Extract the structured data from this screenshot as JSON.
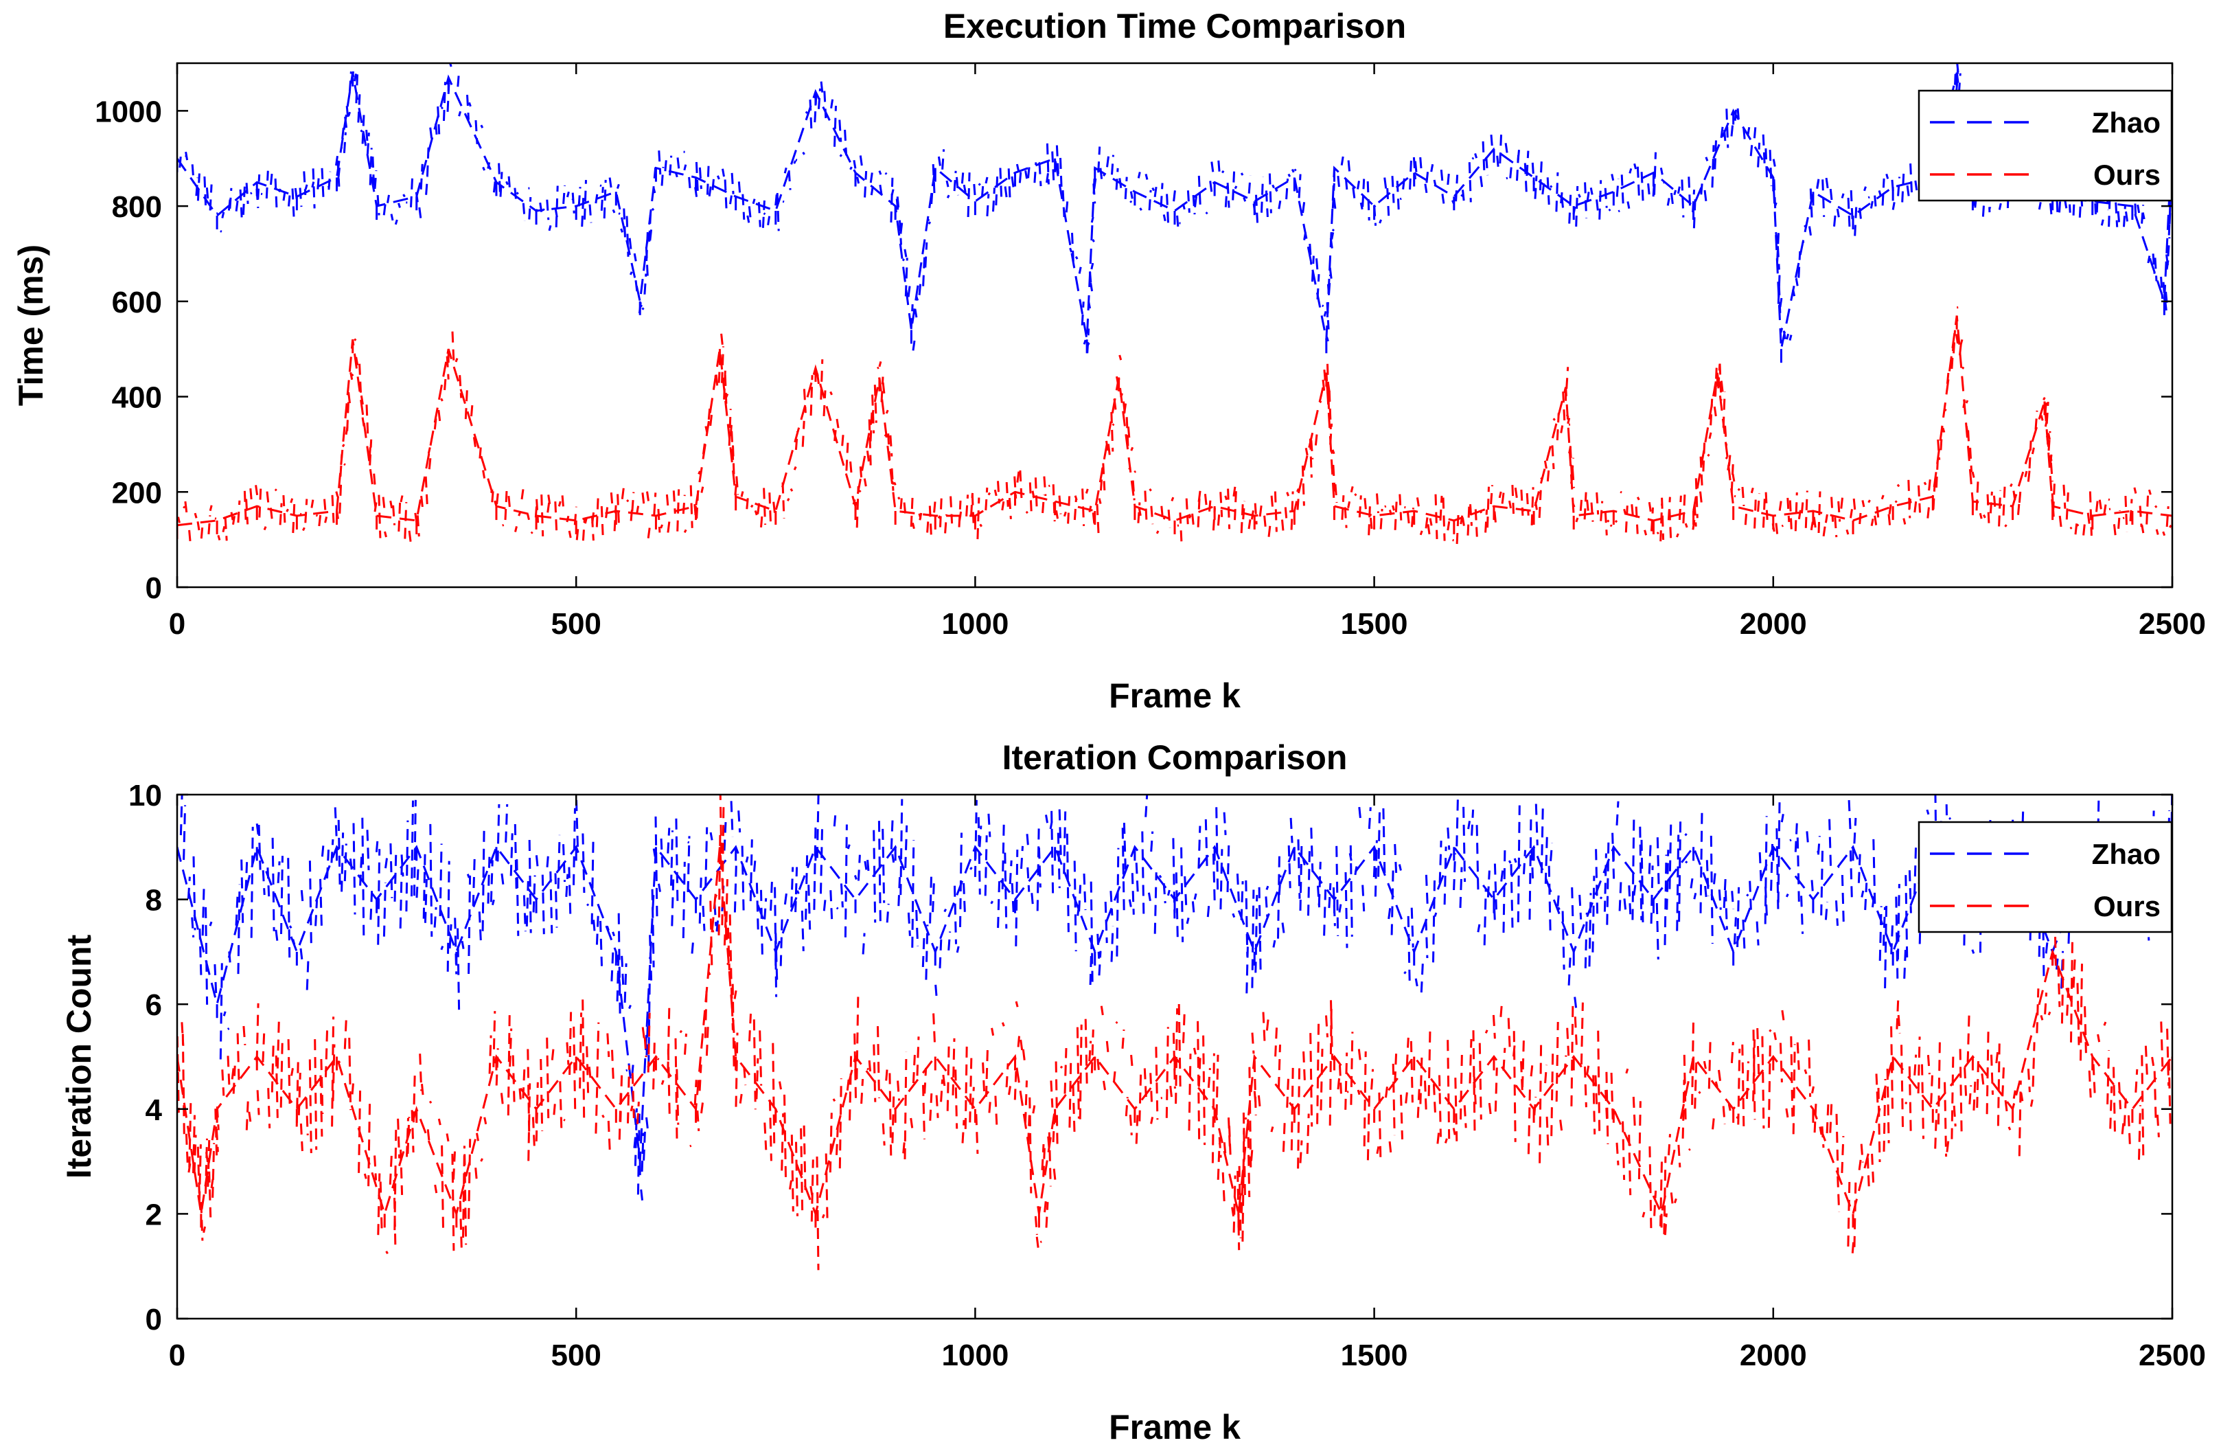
{
  "chart_data": [
    {
      "type": "line",
      "title": "Execution Time Comparison",
      "xlabel": "Frame k",
      "ylabel": "Time (ms)",
      "xlim": [
        0,
        2500
      ],
      "ylim": [
        0,
        1100
      ],
      "xticks": [
        0,
        500,
        1000,
        1500,
        2000,
        2500
      ],
      "yticks": [
        0,
        200,
        400,
        600,
        800,
        1000
      ],
      "legend_position": "top-right",
      "line_style": "dashed",
      "series": [
        {
          "name": "Zhao",
          "color": "#0000ff",
          "x": [
            0,
            50,
            100,
            150,
            200,
            220,
            250,
            300,
            340,
            400,
            450,
            500,
            550,
            580,
            600,
            650,
            700,
            750,
            800,
            850,
            900,
            920,
            950,
            1000,
            1050,
            1100,
            1140,
            1150,
            1200,
            1250,
            1300,
            1350,
            1400,
            1440,
            1450,
            1500,
            1550,
            1600,
            1650,
            1700,
            1750,
            1800,
            1850,
            1900,
            1950,
            2000,
            2010,
            2050,
            2100,
            2150,
            2200,
            2230,
            2250,
            2300,
            2350,
            2400,
            2450,
            2490,
            2500
          ],
          "values": [
            900,
            780,
            850,
            820,
            860,
            1080,
            800,
            820,
            1070,
            850,
            790,
            800,
            830,
            600,
            880,
            860,
            820,
            790,
            1040,
            870,
            800,
            540,
            880,
            810,
            870,
            900,
            520,
            880,
            830,
            790,
            850,
            810,
            860,
            520,
            880,
            800,
            870,
            820,
            920,
            860,
            800,
            830,
            870,
            800,
            1000,
            860,
            500,
            830,
            780,
            840,
            860,
            1080,
            820,
            850,
            820,
            810,
            800,
            600,
            950
          ]
        },
        {
          "name": "Ours",
          "color": "#ff0000",
          "x": [
            0,
            50,
            100,
            150,
            200,
            220,
            250,
            300,
            340,
            400,
            450,
            500,
            550,
            600,
            650,
            680,
            700,
            750,
            800,
            850,
            880,
            900,
            950,
            1000,
            1050,
            1100,
            1150,
            1180,
            1200,
            1250,
            1300,
            1350,
            1400,
            1440,
            1450,
            1500,
            1550,
            1600,
            1650,
            1700,
            1740,
            1750,
            1800,
            1850,
            1900,
            1930,
            1950,
            2000,
            2050,
            2100,
            2150,
            2200,
            2230,
            2250,
            2300,
            2340,
            2350,
            2400,
            2450,
            2500
          ],
          "values": [
            130,
            140,
            170,
            150,
            160,
            520,
            150,
            140,
            500,
            170,
            150,
            140,
            160,
            150,
            170,
            500,
            190,
            160,
            460,
            170,
            440,
            160,
            150,
            150,
            200,
            180,
            160,
            440,
            170,
            140,
            170,
            150,
            160,
            450,
            170,
            150,
            160,
            140,
            170,
            160,
            420,
            150,
            160,
            140,
            160,
            450,
            170,
            150,
            160,
            140,
            170,
            190,
            570,
            180,
            170,
            390,
            170,
            150,
            160,
            150
          ]
        }
      ]
    },
    {
      "type": "line",
      "title": "Iteration Comparison",
      "xlabel": "Frame k",
      "ylabel": "Iteration Count",
      "xlim": [
        0,
        2500
      ],
      "ylim": [
        0,
        10
      ],
      "xticks": [
        0,
        500,
        1000,
        1500,
        2000,
        2500
      ],
      "yticks": [
        0,
        2,
        4,
        6,
        8,
        10
      ],
      "legend_position": "top-right",
      "line_style": "dashed",
      "series": [
        {
          "name": "Zhao",
          "color": "#0000ff",
          "x": [
            0,
            50,
            100,
            150,
            200,
            250,
            300,
            350,
            400,
            450,
            500,
            550,
            580,
            600,
            650,
            700,
            750,
            800,
            850,
            900,
            950,
            1000,
            1050,
            1100,
            1150,
            1200,
            1250,
            1300,
            1350,
            1400,
            1450,
            1500,
            1550,
            1600,
            1650,
            1700,
            1750,
            1800,
            1850,
            1900,
            1950,
            2000,
            2050,
            2100,
            2150,
            2200,
            2250,
            2300,
            2350,
            2400,
            2450,
            2500
          ],
          "values": [
            9,
            6,
            9,
            7,
            9,
            8,
            9,
            7,
            9,
            8,
            9,
            7,
            3,
            9,
            8,
            9,
            7,
            9,
            8,
            9,
            7,
            9,
            8,
            9,
            7,
            9,
            8,
            9,
            7,
            9,
            8,
            9,
            7,
            9,
            8,
            9,
            7,
            9,
            8,
            9,
            7,
            9,
            8,
            9,
            7,
            9,
            8,
            9,
            7,
            9,
            8,
            9
          ]
        },
        {
          "name": "Ours",
          "color": "#ff0000",
          "x": [
            0,
            30,
            50,
            100,
            150,
            200,
            260,
            300,
            350,
            400,
            450,
            500,
            550,
            600,
            650,
            680,
            700,
            750,
            800,
            850,
            900,
            950,
            1000,
            1050,
            1080,
            1100,
            1150,
            1200,
            1250,
            1300,
            1330,
            1350,
            1400,
            1450,
            1500,
            1550,
            1600,
            1650,
            1700,
            1750,
            1800,
            1860,
            1900,
            1950,
            2000,
            2050,
            2100,
            2150,
            2200,
            2250,
            2300,
            2350,
            2400,
            2450,
            2500
          ],
          "values": [
            5,
            2,
            4,
            5,
            4,
            5,
            2,
            4,
            2,
            5,
            4,
            5,
            4,
            5,
            4,
            9,
            5,
            4,
            2,
            5,
            4,
            5,
            4,
            5,
            2,
            4,
            5,
            4,
            5,
            4,
            2,
            5,
            4,
            5,
            4,
            5,
            4,
            5,
            4,
            5,
            4,
            2,
            5,
            4,
            5,
            4,
            2,
            5,
            4,
            5,
            4,
            7,
            5,
            4,
            5
          ]
        }
      ]
    }
  ]
}
